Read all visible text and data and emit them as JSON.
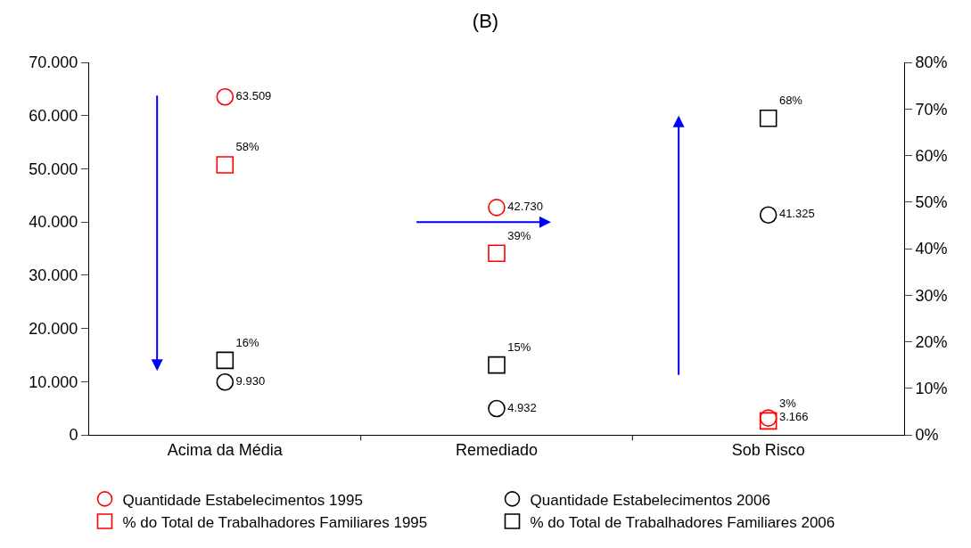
{
  "chart_data": {
    "type": "scatter",
    "title": "(B)",
    "categories": [
      "Acima da Média",
      "Remediado",
      "Sob Risco"
    ],
    "series": [
      {
        "name": "Quantidade Estabelecimentos 1995",
        "color": "#ff0000",
        "marker": "circle",
        "values": [
          63509,
          42730,
          3166
        ],
        "value_labels": [
          "63.509",
          "42.730",
          "3.166"
        ]
      },
      {
        "name": "Quantidade Estabelecimentos 2006",
        "color": "#000000",
        "marker": "circle",
        "values": [
          9930,
          4932,
          41325
        ],
        "value_labels": [
          "9.930",
          "4.932",
          "41.325"
        ]
      },
      {
        "name": "% do Total de Trabalhadores Familiares 1995",
        "color": "#ff0000",
        "marker": "square",
        "axis": "y2",
        "values": [
          58,
          39,
          3
        ],
        "value_labels": [
          "58%",
          "39%",
          "3%"
        ]
      },
      {
        "name": "% do Total de Trabalhadores Familiares 2006",
        "color": "#000000",
        "marker": "square",
        "axis": "y2",
        "values": [
          16,
          15,
          68
        ],
        "value_labels": [
          "16%",
          "15%",
          "68%"
        ]
      }
    ],
    "ylim": [
      0,
      70000
    ],
    "yticks": [
      {
        "value": 0,
        "label": "0"
      },
      {
        "value": 10000,
        "label": "10.000"
      },
      {
        "value": 20000,
        "label": "20.000"
      },
      {
        "value": 30000,
        "label": "30.000"
      },
      {
        "value": 40000,
        "label": "40.000"
      },
      {
        "value": 50000,
        "label": "50.000"
      },
      {
        "value": 60000,
        "label": "60.000"
      },
      {
        "value": 70000,
        "label": "70.000"
      }
    ],
    "y2lim": [
      0,
      80
    ],
    "y2ticks": [
      {
        "value": 0,
        "label": "0%"
      },
      {
        "value": 10,
        "label": "10%"
      },
      {
        "value": 20,
        "label": "20%"
      },
      {
        "value": 30,
        "label": "30%"
      },
      {
        "value": 40,
        "label": "40%"
      },
      {
        "value": 50,
        "label": "50%"
      },
      {
        "value": 60,
        "label": "60%"
      },
      {
        "value": 70,
        "label": "70%"
      },
      {
        "value": 80,
        "label": "80%"
      }
    ],
    "legend": "bottom"
  }
}
